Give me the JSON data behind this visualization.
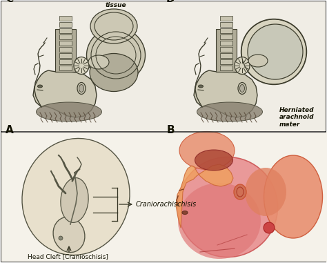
{
  "fig_bg": "#ffffff",
  "panel_bg": "#f8f5ee",
  "border_color": "#222222",
  "panel_labels": [
    "A",
    "B",
    "C",
    "D"
  ],
  "top_label": "Head Cleft [Cranioschisis]",
  "annotation_cranio": "Craniorachischisis",
  "annotation_herniated_brain": "Herniated\nbrain\ntissue",
  "annotation_herniated_arachnoid": "Herniated\narachnoid\nmater",
  "sketch_color": "#444433",
  "sketch_light": "#c8c0a8",
  "sketch_mid": "#a8a090",
  "pink_head": "#e8908080",
  "orange_face": "#f0a06080"
}
